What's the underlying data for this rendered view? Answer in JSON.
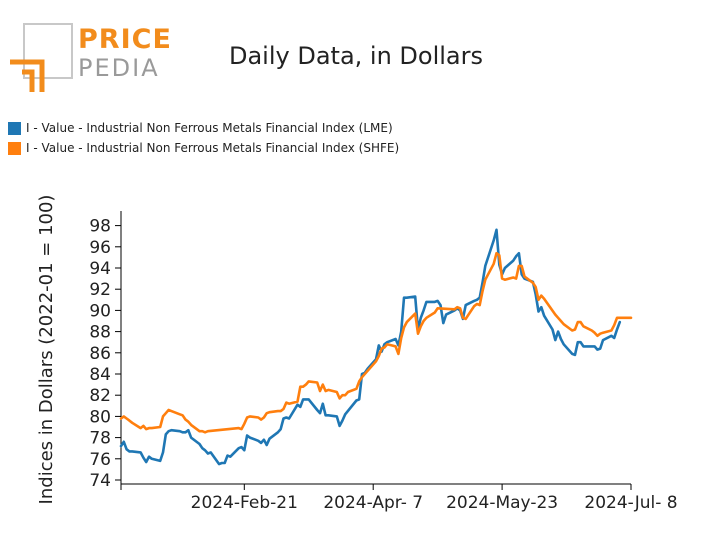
{
  "logo": {
    "word1": "PRICE",
    "word2": "PEDIA",
    "colors": {
      "orange": "#f28c1c",
      "gray": "#9a9a9a"
    }
  },
  "title": "Daily Data, in Dollars",
  "chart_data": {
    "type": "line",
    "title": "Daily Data, in Dollars",
    "ylabel": "Indices in Dollars (2022-01 = 100)",
    "xlabel": "",
    "ylim": [
      74,
      99
    ],
    "yticks": [
      74,
      76,
      78,
      80,
      82,
      84,
      86,
      88,
      90,
      92,
      94,
      96,
      98
    ],
    "xlim": [
      "2024-01-08",
      "2024-07-08"
    ],
    "xticks": [
      {
        "date": "2024-02-21",
        "label": "2024-Feb-21"
      },
      {
        "date": "2024-04-07",
        "label": "2024-Apr- 7"
      },
      {
        "date": "2024-05-23",
        "label": "2024-May-23"
      },
      {
        "date": "2024-07-08",
        "label": "2024-Jul- 8"
      }
    ],
    "grid": false,
    "legend_position": "top-left",
    "series": [
      {
        "name": "I - Value - Industrial Non Ferrous Metals Financial Index (LME)",
        "color": "#1f77b4",
        "points": [
          [
            "2024-01-08",
            77.2
          ],
          [
            "2024-01-09",
            77.6
          ],
          [
            "2024-01-10",
            76.9
          ],
          [
            "2024-01-11",
            76.7
          ],
          [
            "2024-01-12",
            76.7
          ],
          [
            "2024-01-15",
            76.6
          ],
          [
            "2024-01-16",
            76.1
          ],
          [
            "2024-01-17",
            75.7
          ],
          [
            "2024-01-18",
            76.2
          ],
          [
            "2024-01-19",
            76.0
          ],
          [
            "2024-01-22",
            75.8
          ],
          [
            "2024-01-23",
            76.6
          ],
          [
            "2024-01-24",
            78.3
          ],
          [
            "2024-01-25",
            78.6
          ],
          [
            "2024-01-26",
            78.7
          ],
          [
            "2024-01-29",
            78.6
          ],
          [
            "2024-01-30",
            78.5
          ],
          [
            "2024-01-31",
            78.5
          ],
          [
            "2024-02-01",
            78.7
          ],
          [
            "2024-02-02",
            78.0
          ],
          [
            "2024-02-05",
            77.4
          ],
          [
            "2024-02-06",
            77.0
          ],
          [
            "2024-02-07",
            76.8
          ],
          [
            "2024-02-08",
            76.5
          ],
          [
            "2024-02-09",
            76.6
          ],
          [
            "2024-02-12",
            75.5
          ],
          [
            "2024-02-13",
            75.6
          ],
          [
            "2024-02-14",
            75.6
          ],
          [
            "2024-02-15",
            76.3
          ],
          [
            "2024-02-16",
            76.2
          ],
          [
            "2024-02-19",
            77.0
          ],
          [
            "2024-02-20",
            77.1
          ],
          [
            "2024-02-21",
            76.8
          ],
          [
            "2024-02-22",
            78.2
          ],
          [
            "2024-02-23",
            78.0
          ],
          [
            "2024-02-26",
            77.7
          ],
          [
            "2024-02-27",
            77.5
          ],
          [
            "2024-02-28",
            77.8
          ],
          [
            "2024-02-29",
            77.3
          ],
          [
            "2024-03-01",
            77.9
          ],
          [
            "2024-03-04",
            78.5
          ],
          [
            "2024-03-05",
            78.8
          ],
          [
            "2024-03-06",
            79.8
          ],
          [
            "2024-03-07",
            79.9
          ],
          [
            "2024-03-08",
            79.8
          ],
          [
            "2024-03-11",
            81.1
          ],
          [
            "2024-03-12",
            80.9
          ],
          [
            "2024-03-13",
            81.6
          ],
          [
            "2024-03-14",
            81.6
          ],
          [
            "2024-03-15",
            81.6
          ],
          [
            "2024-03-18",
            80.6
          ],
          [
            "2024-03-19",
            80.3
          ],
          [
            "2024-03-20",
            81.2
          ],
          [
            "2024-03-21",
            80.1
          ],
          [
            "2024-03-22",
            80.1
          ],
          [
            "2024-03-25",
            80.0
          ],
          [
            "2024-03-26",
            79.1
          ],
          [
            "2024-03-27",
            79.6
          ],
          [
            "2024-03-28",
            80.2
          ],
          [
            "2024-04-01",
            81.5
          ],
          [
            "2024-04-02",
            81.6
          ],
          [
            "2024-04-03",
            84.0
          ],
          [
            "2024-04-04",
            84.1
          ],
          [
            "2024-04-05",
            84.5
          ],
          [
            "2024-04-08",
            85.4
          ],
          [
            "2024-04-09",
            86.7
          ],
          [
            "2024-04-10",
            86.1
          ],
          [
            "2024-04-11",
            86.8
          ],
          [
            "2024-04-12",
            87.0
          ],
          [
            "2024-04-15",
            87.3
          ],
          [
            "2024-04-16",
            86.7
          ],
          [
            "2024-04-17",
            88.0
          ],
          [
            "2024-04-18",
            91.2
          ],
          [
            "2024-04-19",
            91.2
          ],
          [
            "2024-04-22",
            91.3
          ],
          [
            "2024-04-23",
            88.2
          ],
          [
            "2024-04-24",
            89.3
          ],
          [
            "2024-04-25",
            90.0
          ],
          [
            "2024-04-26",
            90.8
          ],
          [
            "2024-04-29",
            90.8
          ],
          [
            "2024-04-30",
            90.9
          ],
          [
            "2024-05-01",
            90.5
          ],
          [
            "2024-05-02",
            88.8
          ],
          [
            "2024-05-03",
            89.6
          ],
          [
            "2024-05-06",
            90.0
          ],
          [
            "2024-05-07",
            90.2
          ],
          [
            "2024-05-08",
            90.0
          ],
          [
            "2024-05-09",
            89.2
          ],
          [
            "2024-05-10",
            90.5
          ],
          [
            "2024-05-13",
            90.9
          ],
          [
            "2024-05-14",
            91.0
          ],
          [
            "2024-05-15",
            91.2
          ],
          [
            "2024-05-16",
            92.6
          ],
          [
            "2024-05-17",
            94.2
          ],
          [
            "2024-05-20",
            96.6
          ],
          [
            "2024-05-21",
            97.6
          ],
          [
            "2024-05-22",
            94.3
          ],
          [
            "2024-05-23",
            93.4
          ],
          [
            "2024-05-24",
            94.0
          ],
          [
            "2024-05-27",
            94.7
          ],
          [
            "2024-05-28",
            95.1
          ],
          [
            "2024-05-29",
            95.4
          ],
          [
            "2024-05-30",
            93.4
          ],
          [
            "2024-05-31",
            93.0
          ],
          [
            "2024-06-03",
            92.7
          ],
          [
            "2024-06-04",
            91.5
          ],
          [
            "2024-06-05",
            89.9
          ],
          [
            "2024-06-06",
            90.3
          ],
          [
            "2024-06-07",
            89.5
          ],
          [
            "2024-06-10",
            88.2
          ],
          [
            "2024-06-11",
            87.2
          ],
          [
            "2024-06-12",
            88.0
          ],
          [
            "2024-06-13",
            87.3
          ],
          [
            "2024-06-14",
            86.8
          ],
          [
            "2024-06-17",
            85.9
          ],
          [
            "2024-06-18",
            85.8
          ],
          [
            "2024-06-19",
            87.0
          ],
          [
            "2024-06-20",
            87.0
          ],
          [
            "2024-06-21",
            86.6
          ],
          [
            "2024-06-24",
            86.6
          ],
          [
            "2024-06-25",
            86.6
          ],
          [
            "2024-06-26",
            86.3
          ],
          [
            "2024-06-27",
            86.4
          ],
          [
            "2024-06-28",
            87.2
          ],
          [
            "2024-07-01",
            87.6
          ],
          [
            "2024-07-02",
            87.4
          ],
          [
            "2024-07-03",
            88.2
          ],
          [
            "2024-07-04",
            88.9
          ]
        ]
      },
      {
        "name": "I - Value - Industrial Non Ferrous Metals Financial Index (SHFE)",
        "color": "#ff7f0e",
        "points": [
          [
            "2024-01-08",
            79.8
          ],
          [
            "2024-01-09",
            80.0
          ],
          [
            "2024-01-10",
            79.8
          ],
          [
            "2024-01-11",
            79.6
          ],
          [
            "2024-01-12",
            79.4
          ],
          [
            "2024-01-15",
            78.9
          ],
          [
            "2024-01-16",
            79.1
          ],
          [
            "2024-01-17",
            78.8
          ],
          [
            "2024-01-18",
            78.9
          ],
          [
            "2024-01-19",
            78.9
          ],
          [
            "2024-01-22",
            79.0
          ],
          [
            "2024-01-23",
            80.0
          ],
          [
            "2024-01-24",
            80.3
          ],
          [
            "2024-01-25",
            80.6
          ],
          [
            "2024-01-26",
            80.5
          ],
          [
            "2024-01-29",
            80.2
          ],
          [
            "2024-01-30",
            80.1
          ],
          [
            "2024-01-31",
            79.7
          ],
          [
            "2024-02-01",
            79.5
          ],
          [
            "2024-02-02",
            79.2
          ],
          [
            "2024-02-05",
            78.6
          ],
          [
            "2024-02-06",
            78.6
          ],
          [
            "2024-02-07",
            78.5
          ],
          [
            "2024-02-08",
            78.6
          ],
          [
            "2024-02-19",
            78.9
          ],
          [
            "2024-02-20",
            78.8
          ],
          [
            "2024-02-21",
            79.3
          ],
          [
            "2024-02-22",
            79.9
          ],
          [
            "2024-02-23",
            80.0
          ],
          [
            "2024-02-26",
            79.9
          ],
          [
            "2024-02-27",
            79.7
          ],
          [
            "2024-02-28",
            79.9
          ],
          [
            "2024-02-29",
            80.3
          ],
          [
            "2024-03-01",
            80.4
          ],
          [
            "2024-03-04",
            80.5
          ],
          [
            "2024-03-05",
            80.5
          ],
          [
            "2024-03-06",
            80.7
          ],
          [
            "2024-03-07",
            81.3
          ],
          [
            "2024-03-08",
            81.2
          ],
          [
            "2024-03-11",
            81.4
          ],
          [
            "2024-03-12",
            82.8
          ],
          [
            "2024-03-13",
            82.8
          ],
          [
            "2024-03-14",
            83.0
          ],
          [
            "2024-03-15",
            83.3
          ],
          [
            "2024-03-18",
            83.2
          ],
          [
            "2024-03-19",
            82.4
          ],
          [
            "2024-03-20",
            83.0
          ],
          [
            "2024-03-21",
            82.4
          ],
          [
            "2024-03-22",
            82.5
          ],
          [
            "2024-03-25",
            82.3
          ],
          [
            "2024-03-26",
            81.7
          ],
          [
            "2024-03-27",
            82.0
          ],
          [
            "2024-03-28",
            82.0
          ],
          [
            "2024-03-29",
            82.3
          ],
          [
            "2024-04-01",
            82.6
          ],
          [
            "2024-04-02",
            83.3
          ],
          [
            "2024-04-03",
            83.7
          ],
          [
            "2024-04-08",
            85.2
          ],
          [
            "2024-04-09",
            85.7
          ],
          [
            "2024-04-10",
            86.4
          ],
          [
            "2024-04-11",
            86.5
          ],
          [
            "2024-04-12",
            86.8
          ],
          [
            "2024-04-15",
            86.6
          ],
          [
            "2024-04-16",
            85.9
          ],
          [
            "2024-04-17",
            87.4
          ],
          [
            "2024-04-18",
            88.4
          ],
          [
            "2024-04-19",
            88.9
          ],
          [
            "2024-04-22",
            89.7
          ],
          [
            "2024-04-23",
            87.8
          ],
          [
            "2024-04-24",
            88.5
          ],
          [
            "2024-04-25",
            89.0
          ],
          [
            "2024-04-26",
            89.3
          ],
          [
            "2024-04-29",
            89.8
          ],
          [
            "2024-04-30",
            90.2
          ],
          [
            "2024-05-06",
            90.1
          ],
          [
            "2024-05-07",
            90.3
          ],
          [
            "2024-05-08",
            90.2
          ],
          [
            "2024-05-09",
            89.3
          ],
          [
            "2024-05-10",
            89.2
          ],
          [
            "2024-05-13",
            90.4
          ],
          [
            "2024-05-14",
            90.6
          ],
          [
            "2024-05-15",
            90.5
          ],
          [
            "2024-05-16",
            91.8
          ],
          [
            "2024-05-17",
            92.9
          ],
          [
            "2024-05-20",
            94.4
          ],
          [
            "2024-05-21",
            95.4
          ],
          [
            "2024-05-22",
            95.2
          ],
          [
            "2024-05-23",
            93.0
          ],
          [
            "2024-05-24",
            92.9
          ],
          [
            "2024-05-27",
            93.1
          ],
          [
            "2024-05-28",
            93.0
          ],
          [
            "2024-05-29",
            94.2
          ],
          [
            "2024-05-30",
            94.2
          ],
          [
            "2024-05-31",
            93.2
          ],
          [
            "2024-06-03",
            92.6
          ],
          [
            "2024-06-04",
            92.2
          ],
          [
            "2024-06-05",
            91.0
          ],
          [
            "2024-06-06",
            91.4
          ],
          [
            "2024-06-07",
            91.1
          ],
          [
            "2024-06-11",
            89.6
          ],
          [
            "2024-06-12",
            89.3
          ],
          [
            "2024-06-13",
            89.0
          ],
          [
            "2024-06-14",
            88.7
          ],
          [
            "2024-06-17",
            88.1
          ],
          [
            "2024-06-18",
            88.2
          ],
          [
            "2024-06-19",
            88.9
          ],
          [
            "2024-06-20",
            88.9
          ],
          [
            "2024-06-21",
            88.5
          ],
          [
            "2024-06-24",
            88.1
          ],
          [
            "2024-06-25",
            87.9
          ],
          [
            "2024-06-26",
            87.6
          ],
          [
            "2024-06-27",
            87.8
          ],
          [
            "2024-06-28",
            87.9
          ],
          [
            "2024-07-01",
            88.1
          ],
          [
            "2024-07-02",
            88.6
          ],
          [
            "2024-07-03",
            89.3
          ],
          [
            "2024-07-04",
            89.3
          ],
          [
            "2024-07-05",
            89.3
          ],
          [
            "2024-07-08",
            89.3
          ]
        ]
      }
    ]
  }
}
